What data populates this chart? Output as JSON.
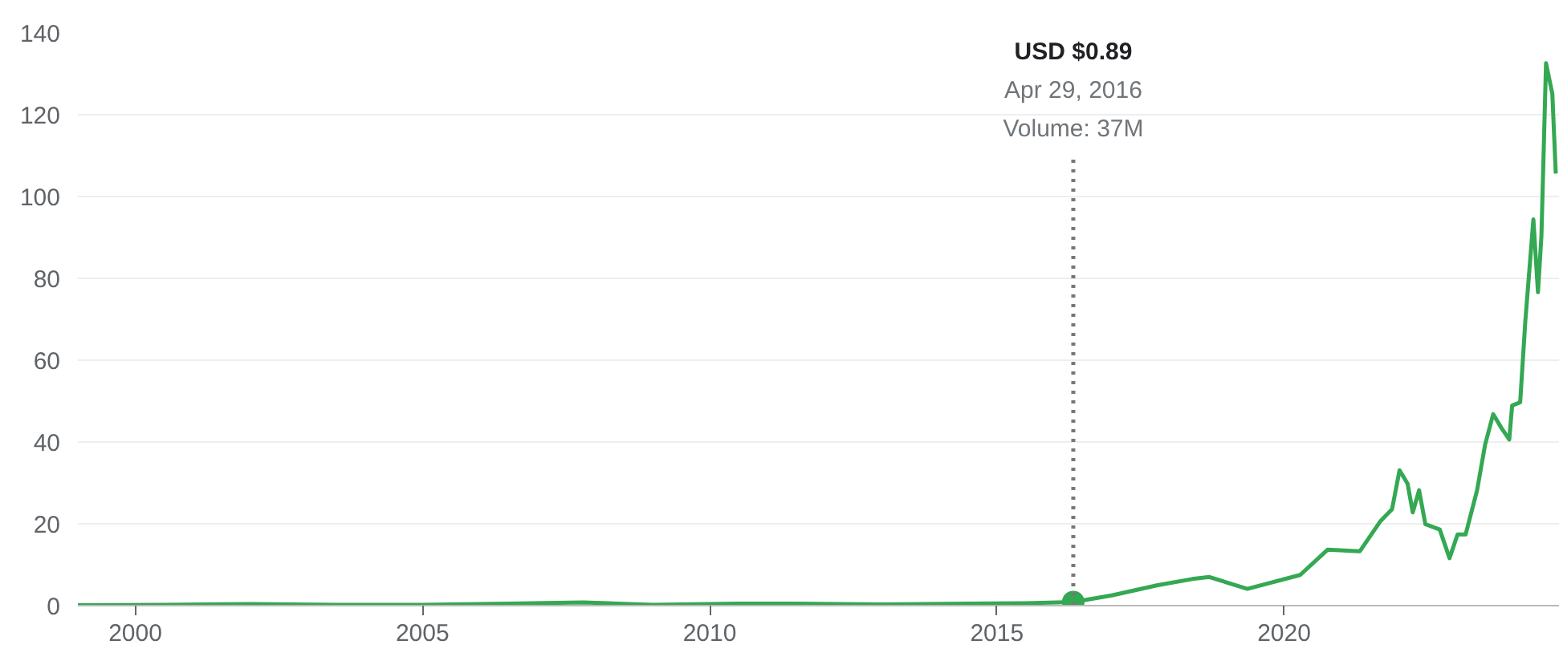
{
  "chart_data": {
    "type": "line",
    "x": [
      1999.0,
      2000.5,
      2002.0,
      2003.5,
      2005.0,
      2006.5,
      2007.8,
      2009.0,
      2010.5,
      2011.5,
      2013.0,
      2014.5,
      2015.5,
      2016.33,
      2017.0,
      2017.8,
      2018.4,
      2018.7,
      2018.88,
      2019.36,
      2020.28,
      2020.76,
      2021.32,
      2021.68,
      2021.88,
      2022.01,
      2022.15,
      2022.24,
      2022.35,
      2022.46,
      2022.71,
      2022.88,
      2023.02,
      2023.16,
      2023.36,
      2023.5,
      2023.64,
      2023.78,
      2023.92,
      2023.97,
      2024.11,
      2024.2,
      2024.34,
      2024.42,
      2024.48,
      2024.56,
      2024.67,
      2024.73
    ],
    "series": [
      {
        "color": "#34a853",
        "values": [
          0.1,
          0.2,
          0.4,
          0.2,
          0.2,
          0.5,
          0.8,
          0.2,
          0.5,
          0.5,
          0.3,
          0.5,
          0.6,
          0.89,
          2.5,
          5.0,
          6.5,
          7.0,
          6.2,
          4.1,
          7.5,
          13.7,
          13.3,
          20.7,
          23.6,
          33.1,
          29.8,
          22.8,
          28.2,
          19.9,
          18.6,
          11.6,
          17.4,
          17.4,
          28.2,
          39.4,
          46.8,
          43.5,
          40.6,
          48.9,
          49.7,
          69.6,
          94.4,
          76.6,
          90.3,
          132.6,
          125.1,
          105.6
        ]
      },
      {
        "type": "scatter",
        "x": [
          2016.33
        ],
        "color": "#34a853",
        "values": [
          0.89
        ]
      }
    ],
    "xlim": [
      1999.0,
      2024.8
    ],
    "ylim": [
      0,
      140
    ],
    "xticks": [
      2000,
      2005,
      2010,
      2015,
      2020
    ],
    "yticks": [
      0,
      20,
      40,
      60,
      80,
      100,
      120,
      140
    ],
    "grid": "y",
    "ref_lines": [
      {
        "axis": "x",
        "value": 2016.33,
        "color": "#777777",
        "line_style": "dotted"
      }
    ],
    "annotations": [
      "USD $0.89",
      "Apr 29, 2016",
      "Volume: 37M"
    ]
  }
}
